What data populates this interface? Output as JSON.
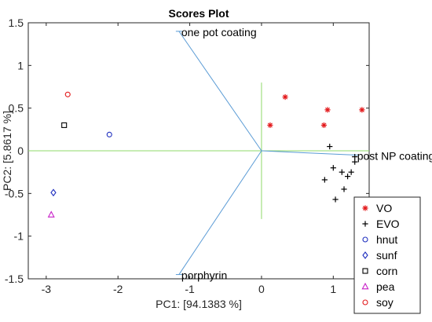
{
  "chart_data": {
    "type": "scatter",
    "title": "Scores Plot",
    "xlabel": "PC1: [94.1383 %]",
    "ylabel": "PC2: [5.8617 %]",
    "xlim": [
      -3.25,
      1.5
    ],
    "ylim": [
      -1.5,
      1.5
    ],
    "xticks": [
      -3,
      -2,
      -1,
      0,
      1
    ],
    "yticks": [
      -1.5,
      -1,
      -0.5,
      0,
      0.5,
      1,
      1.5
    ],
    "grid": false,
    "legend_position": "bottom-right",
    "axes_lines": {
      "horizontal": {
        "y": 0,
        "x_range": [
          -3.25,
          1.5
        ],
        "color": "#8fd86a"
      },
      "vertical": {
        "x": 0,
        "y_range": [
          -0.8,
          0.8
        ],
        "color": "#8fd86a"
      }
    },
    "loadings": {
      "color": "#5a9bd5",
      "vectors": [
        {
          "label": "one pot coating",
          "x": -1.15,
          "y": 1.4
        },
        {
          "label": "post NP coating",
          "x": 1.3,
          "y": -0.05
        },
        {
          "label": "porphyrin",
          "x": -1.15,
          "y": -1.45
        }
      ]
    },
    "series": [
      {
        "name": "VO",
        "marker": "asterisk",
        "color": "#e31a1c",
        "points": [
          [
            0.33,
            0.63
          ],
          [
            0.92,
            0.48
          ],
          [
            1.4,
            0.48
          ],
          [
            0.12,
            0.3
          ],
          [
            0.87,
            0.3
          ]
        ]
      },
      {
        "name": "EVO",
        "marker": "plus",
        "color": "#000000",
        "points": [
          [
            0.95,
            0.05
          ],
          [
            1.3,
            -0.07
          ],
          [
            1.3,
            -0.13
          ],
          [
            1.0,
            -0.2
          ],
          [
            1.12,
            -0.25
          ],
          [
            1.25,
            -0.25
          ],
          [
            1.2,
            -0.3
          ],
          [
            0.88,
            -0.34
          ],
          [
            1.15,
            -0.45
          ],
          [
            1.03,
            -0.57
          ]
        ]
      },
      {
        "name": "hnut",
        "marker": "circle",
        "color": "#1f2fbf",
        "points": [
          [
            -2.12,
            0.19
          ]
        ]
      },
      {
        "name": "sunf",
        "marker": "diamond",
        "color": "#1f2fbf",
        "points": [
          [
            -2.9,
            -0.49
          ]
        ]
      },
      {
        "name": "corn",
        "marker": "square",
        "color": "#000000",
        "points": [
          [
            -2.75,
            0.3
          ]
        ]
      },
      {
        "name": "pea",
        "marker": "triangle",
        "color": "#c71fc7",
        "points": [
          [
            -2.93,
            -0.75
          ]
        ]
      },
      {
        "name": "soy",
        "marker": "circle",
        "color": "#e31a1c",
        "points": [
          [
            -2.7,
            0.66
          ]
        ]
      }
    ]
  }
}
